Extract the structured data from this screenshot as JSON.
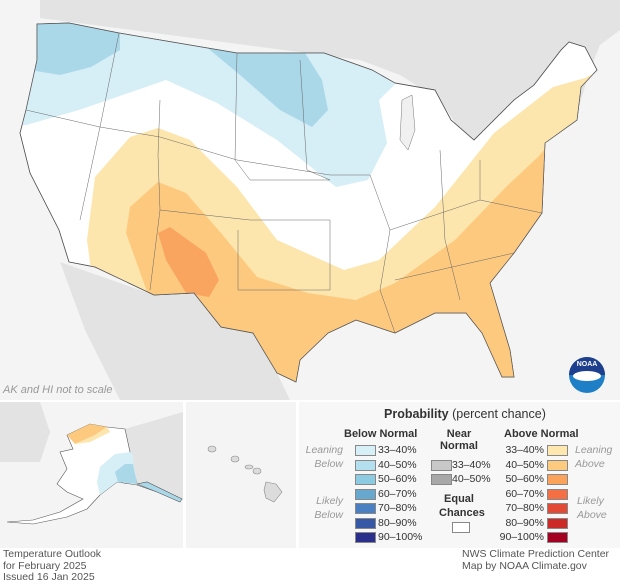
{
  "map": {
    "note": "AK and HI not to scale",
    "logo": "NOAA",
    "colors": {
      "water": "#f4f4f4",
      "land": "#e3e3e3",
      "us": "#ffffff",
      "below_33_40": "#d6eef6",
      "below_40_50": "#aad8e9",
      "above_33_40": "#fde6ad",
      "above_40_50": "#fdc97e",
      "above_50_60": "#f9a560"
    }
  },
  "legend": {
    "title_bold": "Probability",
    "title_rest": "(percent chance)",
    "below": {
      "heading": "Below Normal",
      "leaning": [
        "Leaning",
        "Below"
      ],
      "likely": [
        "Likely",
        "Below"
      ],
      "items": [
        {
          "label": "33–40%",
          "color": "#d7eff7"
        },
        {
          "label": "40–50%",
          "color": "#b3dfee"
        },
        {
          "label": "50–60%",
          "color": "#8ccbe2"
        },
        {
          "label": "60–70%",
          "color": "#68a8cf"
        },
        {
          "label": "70–80%",
          "color": "#4a7fc1"
        },
        {
          "label": "80–90%",
          "color": "#3758a6"
        },
        {
          "label": "90–100%",
          "color": "#2b2f8c"
        }
      ]
    },
    "near": {
      "heading": [
        "Near",
        "Normal"
      ],
      "items": [
        {
          "label": "33–40%",
          "color": "#c8c8c8"
        },
        {
          "label": "40–50%",
          "color": "#a8a8a8"
        }
      ]
    },
    "equal": {
      "heading": [
        "Equal",
        "Chances"
      ],
      "color": "#ffffff"
    },
    "above": {
      "heading": "Above Normal",
      "leaning": [
        "Leaning",
        "Above"
      ],
      "likely": [
        "Likely",
        "Above"
      ],
      "items": [
        {
          "label": "33–40%",
          "color": "#fee8b0"
        },
        {
          "label": "40–50%",
          "color": "#fdcb80"
        },
        {
          "label": "50–60%",
          "color": "#fba35a"
        },
        {
          "label": "60–70%",
          "color": "#f47044"
        },
        {
          "label": "70–80%",
          "color": "#e24a35"
        },
        {
          "label": "80–90%",
          "color": "#cc2a26"
        },
        {
          "label": "90–100%",
          "color": "#a30022"
        }
      ]
    }
  },
  "footer": {
    "left": [
      "Temperature Outlook",
      "for February 2025",
      "Issued 16 Jan 2025"
    ],
    "right": [
      "NWS Climate Prediction Center",
      "Map by NOAA Climate.gov"
    ]
  }
}
